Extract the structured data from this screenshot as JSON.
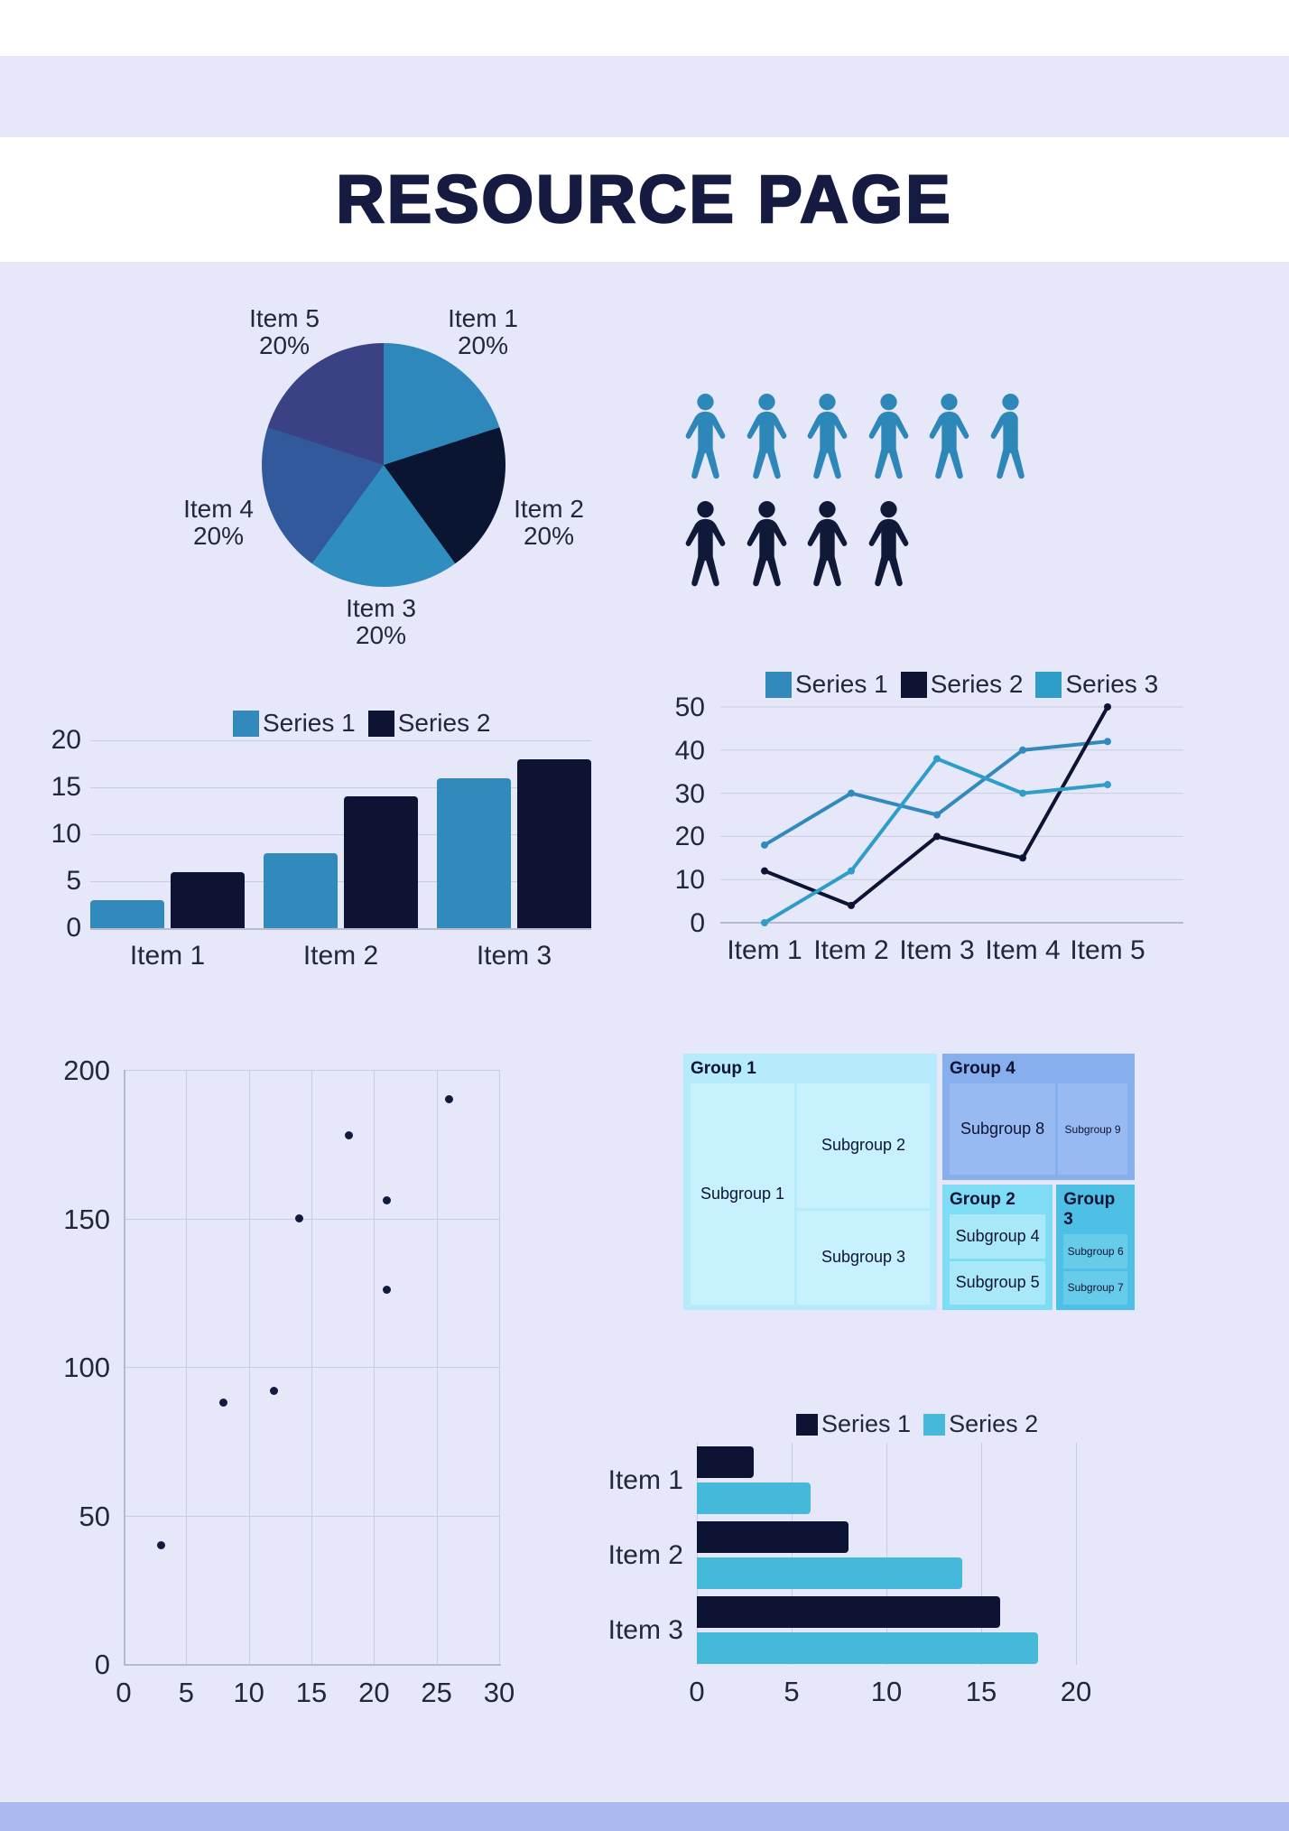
{
  "title": "RESOURCE PAGE",
  "colors": {
    "background": "#E6E8F9",
    "band": "#FFFFFF",
    "footer": "#ACB9F0",
    "title": "#161B41",
    "text": "#23263C",
    "grid": "#C9CCDE",
    "axis": "#B6BACE"
  },
  "chart_data": [
    {
      "id": "pie",
      "type": "pie",
      "labels": [
        "Item 1",
        "Item 2",
        "Item 3",
        "Item 4",
        "Item 5"
      ],
      "values": [
        20,
        20,
        20,
        20,
        20
      ],
      "value_labels": [
        "20%",
        "20%",
        "20%",
        "20%",
        "20%"
      ],
      "colors": [
        "#2E88BB",
        "#0A1531",
        "#2F8DC0",
        "#32599C",
        "#3A4184"
      ]
    },
    {
      "id": "pictogram",
      "type": "pictogram",
      "series": [
        {
          "name": "people-blue",
          "color": "#2E87B9",
          "count": 5.7
        },
        {
          "name": "people-navy",
          "color": "#101A38",
          "count": 4
        }
      ]
    },
    {
      "id": "grouped-bar",
      "type": "bar",
      "categories": [
        "Item 1",
        "Item 2",
        "Item 3"
      ],
      "series": [
        {
          "name": "Series 1",
          "color": "#3189BC",
          "values": [
            3,
            8,
            16
          ]
        },
        {
          "name": "Series 2",
          "color": "#0D1433",
          "values": [
            6,
            14,
            18
          ]
        }
      ],
      "y_ticks": [
        0,
        5,
        10,
        15,
        20
      ],
      "ylim": [
        0,
        20
      ],
      "legend_position": "top"
    },
    {
      "id": "line",
      "type": "line",
      "categories": [
        "Item 1",
        "Item 2",
        "Item 3",
        "Item 4",
        "Item 5"
      ],
      "series": [
        {
          "name": "Series 1",
          "color": "#3189BC",
          "values": [
            18,
            30,
            25,
            40,
            42
          ]
        },
        {
          "name": "Series 2",
          "color": "#0D1433",
          "values": [
            12,
            4,
            20,
            15,
            50
          ]
        },
        {
          "name": "Series 3",
          "color": "#2E9EC9",
          "values": [
            0,
            12,
            38,
            30,
            32
          ]
        }
      ],
      "y_ticks": [
        0,
        10,
        20,
        30,
        40,
        50
      ],
      "ylim": [
        0,
        50
      ],
      "legend_position": "top"
    },
    {
      "id": "scatter",
      "type": "scatter",
      "points": [
        [
          3,
          40
        ],
        [
          8,
          88
        ],
        [
          12,
          92
        ],
        [
          14,
          150
        ],
        [
          18,
          178
        ],
        [
          21,
          126
        ],
        [
          21,
          156
        ],
        [
          26,
          190
        ]
      ],
      "x_ticks": [
        0,
        5,
        10,
        15,
        20,
        25,
        30
      ],
      "y_ticks": [
        0,
        50,
        100,
        150,
        200
      ],
      "xlim": [
        0,
        30
      ],
      "ylim": [
        0,
        200
      ],
      "dot_color": "#131B3C",
      "grid": true
    },
    {
      "id": "treemap",
      "type": "treemap",
      "groups": [
        {
          "name": "Group 1",
          "color": "#B5EBFA",
          "cell_color": "#C6F1FD",
          "children": [
            "Subgroup 1",
            "Subgroup 2",
            "Subgroup 3"
          ]
        },
        {
          "name": "Group 2",
          "color": "#7EDDF5",
          "cell_color": "#A9E8F8",
          "children": [
            "Subgroup 4",
            "Subgroup 5"
          ]
        },
        {
          "name": "Group 3",
          "color": "#4EC0E5",
          "cell_color": "#67CCEA",
          "children": [
            "Subgroup 6",
            "Subgroup 7"
          ]
        },
        {
          "name": "Group 4",
          "color": "#87AEED",
          "cell_color": "#98BAF2",
          "children": [
            "Subgroup 8",
            "Subgroup 9"
          ]
        }
      ]
    },
    {
      "id": "hbar",
      "type": "bar",
      "orientation": "horizontal",
      "categories": [
        "Item 1",
        "Item 2",
        "Item 3"
      ],
      "series": [
        {
          "name": "Series 1",
          "color": "#0D1433",
          "values": [
            3,
            8,
            16
          ]
        },
        {
          "name": "Series 2",
          "color": "#45B9D9",
          "values": [
            6,
            14,
            18
          ]
        }
      ],
      "x_ticks": [
        0,
        5,
        10,
        15,
        20
      ],
      "xlim": [
        0,
        20
      ],
      "legend_position": "top"
    }
  ]
}
